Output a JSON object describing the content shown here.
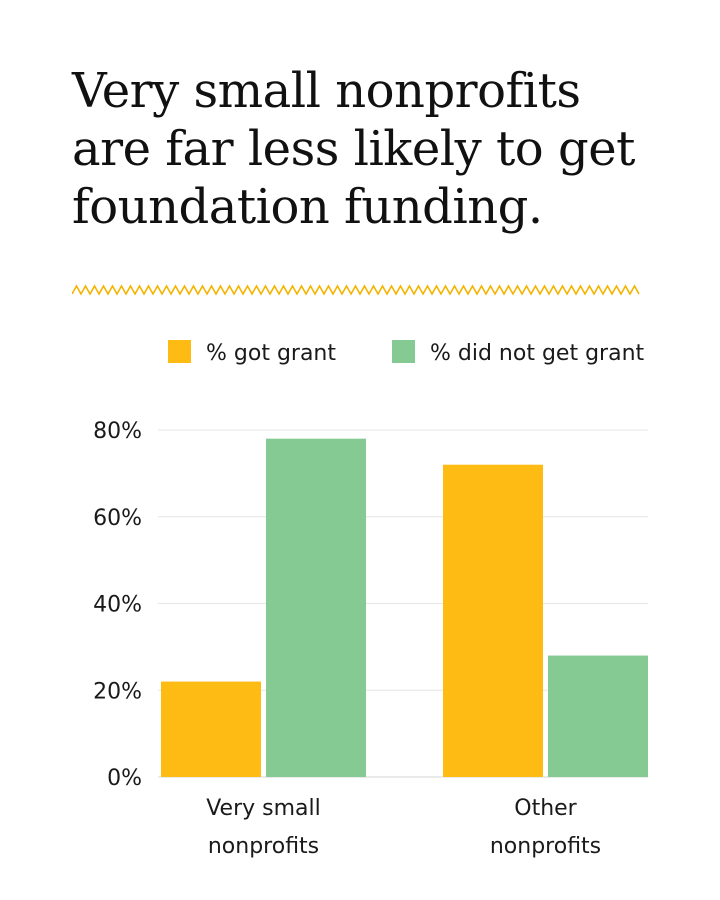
{
  "title_lines": [
    "Very small nonprofits",
    "are far less likely to get",
    "foundation funding."
  ],
  "colors": {
    "accent": "#F4B400",
    "got": "#FDBB14",
    "not": "#86CA93",
    "grid": "#E6E6E6",
    "text": "#1A1A1A"
  },
  "chart_data": {
    "type": "bar",
    "categories": [
      [
        "Very small",
        "nonprofits"
      ],
      [
        "Other",
        "nonprofits"
      ]
    ],
    "series": [
      {
        "name": "% got grant",
        "values": [
          22,
          72
        ]
      },
      {
        "name": "% did not get grant",
        "values": [
          78,
          28
        ]
      }
    ],
    "y_ticks": [
      "0%",
      "20%",
      "40%",
      "60%",
      "80%"
    ],
    "ylim": [
      0,
      80
    ],
    "grid": true,
    "legend_position": "top"
  }
}
